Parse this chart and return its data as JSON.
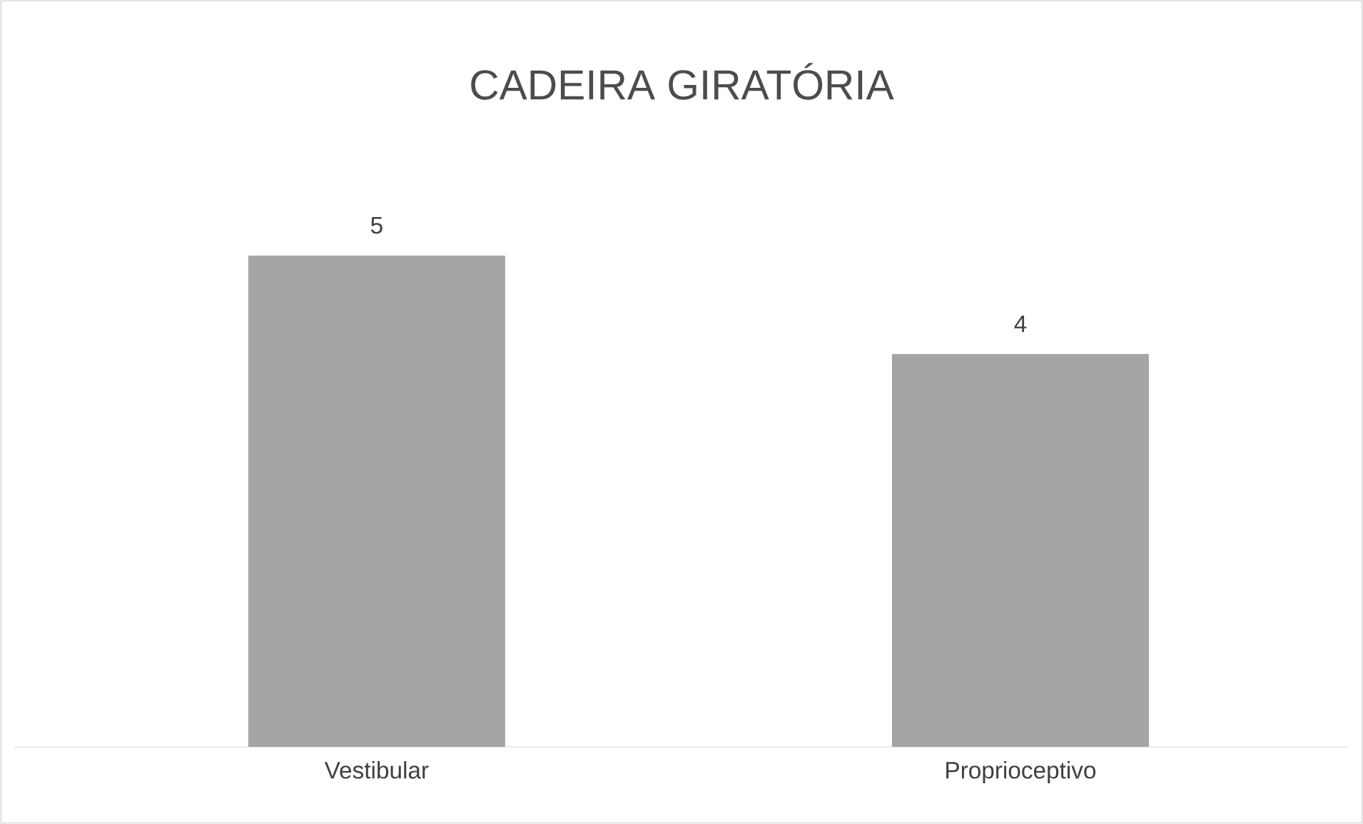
{
  "chart_data": {
    "type": "bar",
    "title": "CADEIRA GIRATÓRIA",
    "categories": [
      "Vestibular",
      "Proprioceptivo"
    ],
    "values": [
      5,
      4
    ],
    "color": "#a5a5a5",
    "data_labels": true
  }
}
